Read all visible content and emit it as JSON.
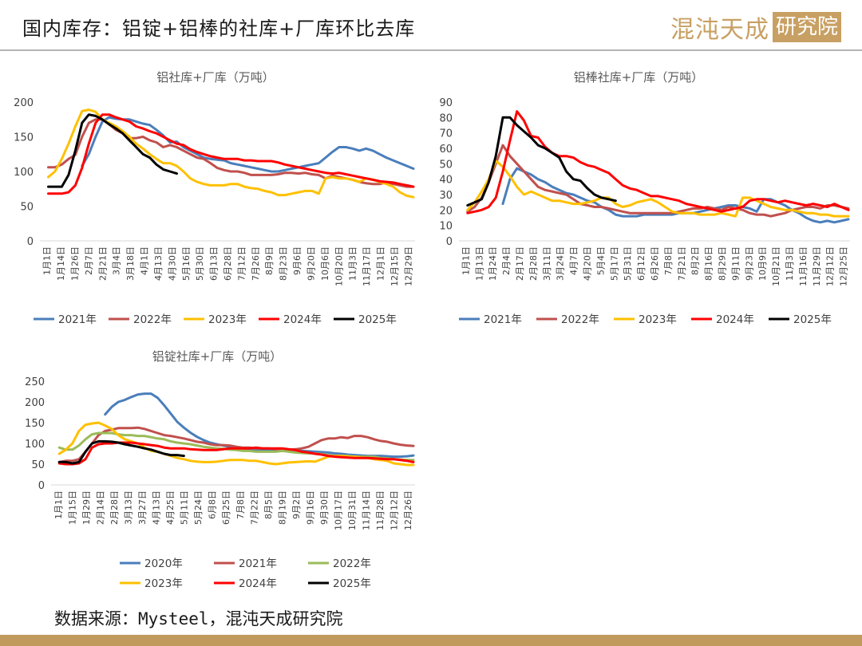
{
  "header": {
    "title": "国内库存：铝锭+铝棒的社库+厂库环比去库",
    "brand_main": "混沌天成",
    "brand_box": "研究院"
  },
  "source": "数据来源：Mysteel，混沌天成研究院",
  "colors": {
    "2020年": "#4a7ebb",
    "2021年": "#4a7ebb",
    "2022年": "#c0504d",
    "2023年": "#ffc000",
    "2024年": "#ff0000",
    "2025年": "#000000",
    "2021年_c3": "#c0504d",
    "2022年_c3": "#9bbb59"
  },
  "chart_data": [
    {
      "type": "line",
      "title": "铝社库+厂库（万吨）",
      "ylim": [
        0,
        200
      ],
      "yticks": [
        0,
        50,
        100,
        150,
        200
      ],
      "x_ticks": [
        "1月1日",
        "1月14日",
        "1月26日",
        "2月7日",
        "2月21日",
        "3月4日",
        "3月18日",
        "4月1日",
        "4月13日",
        "4月30日",
        "5月16日",
        "5月30日",
        "6月13日",
        "6月28日",
        "7月12日",
        "7月26日",
        "8月9日",
        "8月23日",
        "9月6日",
        "9月20日",
        "10月6日",
        "10月20日",
        "11月3日",
        "11月17日",
        "12月1日",
        "12月15日",
        "12月29日"
      ],
      "legend": [
        "2021年",
        "2022年",
        "2023年",
        "2024年",
        "2025年"
      ],
      "series": [
        {
          "name": "2021年",
          "color": "#4a7ebb",
          "values": [
            null,
            null,
            null,
            null,
            null,
            null,
            108,
            125,
            150,
            172,
            178,
            176,
            175,
            175,
            172,
            169,
            167,
            160,
            152,
            142,
            143,
            135,
            130,
            125,
            120,
            118,
            117,
            116,
            112,
            110,
            108,
            106,
            104,
            102,
            100,
            100,
            102,
            104,
            106,
            108,
            110,
            112,
            120,
            128,
            135,
            135,
            133,
            130,
            133,
            130,
            125,
            120,
            116,
            112,
            108,
            104
          ]
        },
        {
          "name": "2022年",
          "color": "#c0504d",
          "values": [
            null,
            106,
            106,
            110,
            118,
            124,
            150,
            170,
            175,
            175,
            168,
            160,
            155,
            148,
            148,
            150,
            145,
            142,
            135,
            138,
            135,
            130,
            125,
            120,
            118,
            112,
            105,
            102,
            100,
            100,
            98,
            95,
            95,
            95,
            95,
            96,
            98,
            98,
            97,
            98,
            96,
            95,
            90,
            94,
            92,
            90,
            88,
            85,
            83,
            82,
            82,
            84,
            82,
            80,
            78,
            78
          ]
        },
        {
          "name": "2023年",
          "color": "#ffc000",
          "values": [
            null,
            92,
            100,
            118,
            140,
            165,
            187,
            189,
            186,
            175,
            170,
            165,
            158,
            150,
            140,
            133,
            125,
            118,
            112,
            112,
            108,
            100,
            90,
            85,
            82,
            80,
            80,
            80,
            82,
            82,
            78,
            76,
            75,
            72,
            70,
            66,
            66,
            68,
            70,
            72,
            72,
            68,
            90,
            92,
            90,
            90,
            88,
            85,
            90,
            88,
            85,
            82,
            78,
            70,
            65,
            63
          ]
        },
        {
          "name": "2024年",
          "color": "#ff0000",
          "values": [
            null,
            68,
            68,
            68,
            70,
            80,
            105,
            140,
            170,
            182,
            182,
            178,
            175,
            172,
            165,
            162,
            158,
            155,
            150,
            145,
            140,
            138,
            132,
            128,
            125,
            122,
            120,
            118,
            118,
            118,
            116,
            116,
            115,
            115,
            115,
            113,
            110,
            108,
            106,
            104,
            102,
            100,
            98,
            97,
            98,
            96,
            94,
            92,
            90,
            88,
            86,
            85,
            84,
            82,
            80,
            78
          ]
        },
        {
          "name": "2025年",
          "color": "#000000",
          "values": [
            null,
            78,
            78,
            78,
            95,
            130,
            170,
            182,
            180,
            175,
            168,
            162,
            155,
            145,
            135,
            125,
            120,
            110,
            103,
            100,
            97,
            null,
            null,
            null,
            null,
            null,
            null,
            null,
            null,
            null,
            null,
            null,
            null,
            null,
            null,
            null,
            null,
            null,
            null,
            null,
            null,
            null,
            null,
            null,
            null,
            null,
            null,
            null,
            null,
            null,
            null,
            null,
            null,
            null,
            null,
            null
          ]
        }
      ]
    },
    {
      "type": "line",
      "title": "铝棒社库+厂库（万吨）",
      "ylim": [
        0,
        90
      ],
      "yticks": [
        0,
        10,
        20,
        30,
        40,
        50,
        60,
        70,
        80,
        90
      ],
      "x_ticks": [
        "1月1日",
        "1月13日",
        "1月24日",
        "2月4日",
        "2月17日",
        "2月28日",
        "3月11日",
        "3月24日",
        "4月7日",
        "4月20日",
        "5月4日",
        "5月17日",
        "5月31日",
        "6月12日",
        "6月26日",
        "7月8日",
        "7月21日",
        "8月2日",
        "8月16日",
        "8月29日",
        "9月11日",
        "9月23日",
        "10月9日",
        "10月21日",
        "11月3日",
        "11月16日",
        "11月29日",
        "12月12日",
        "12月25日"
      ],
      "legend": [
        "2021年",
        "2022年",
        "2023年",
        "2024年",
        "2025年"
      ],
      "series": [
        {
          "name": "2021年",
          "color": "#4a7ebb",
          "values": [
            null,
            null,
            null,
            null,
            null,
            null,
            24,
            40,
            47,
            45,
            43,
            40,
            38,
            35,
            33,
            31,
            30,
            28,
            26,
            25,
            22,
            20,
            17,
            16,
            16,
            16,
            17,
            17,
            17,
            17,
            17,
            18,
            18,
            18,
            19,
            20,
            21,
            22,
            23,
            23,
            22,
            21,
            19,
            27,
            27,
            25,
            23,
            20,
            18,
            15,
            13,
            12,
            13,
            12,
            13,
            14
          ]
        },
        {
          "name": "2022年",
          "color": "#c0504d",
          "values": [
            null,
            19,
            22,
            28,
            38,
            50,
            62,
            55,
            50,
            45,
            40,
            35,
            33,
            32,
            31,
            30,
            27,
            24,
            23,
            22,
            22,
            21,
            20,
            19,
            18,
            18,
            18,
            18,
            18,
            18,
            18,
            19,
            20,
            21,
            21,
            22,
            21,
            20,
            22,
            21,
            20,
            18,
            17,
            17,
            16,
            17,
            18,
            20,
            21,
            22,
            22,
            21,
            23,
            23,
            22,
            21
          ]
        },
        {
          "name": "2023年",
          "color": "#ffc000",
          "values": [
            null,
            20,
            25,
            32,
            40,
            52,
            48,
            42,
            35,
            30,
            32,
            30,
            28,
            26,
            26,
            25,
            24,
            24,
            25,
            26,
            28,
            28,
            24,
            22,
            23,
            25,
            26,
            27,
            25,
            22,
            19,
            18,
            18,
            18,
            17,
            17,
            17,
            18,
            17,
            16,
            28,
            28,
            26,
            24,
            22,
            21,
            20,
            20,
            19,
            18,
            18,
            17,
            17,
            16,
            16,
            16
          ]
        },
        {
          "name": "2024年",
          "color": "#ff0000",
          "values": [
            null,
            18,
            19,
            20,
            22,
            28,
            45,
            65,
            84,
            78,
            68,
            67,
            61,
            57,
            55,
            55,
            54,
            51,
            49,
            48,
            46,
            44,
            40,
            36,
            34,
            33,
            31,
            29,
            29,
            28,
            27,
            26,
            24,
            23,
            22,
            21,
            20,
            19,
            20,
            21,
            22,
            26,
            27,
            27,
            26,
            25,
            26,
            25,
            24,
            23,
            24,
            23,
            22,
            24,
            22,
            20
          ]
        },
        {
          "name": "2025年",
          "color": "#000000",
          "values": [
            null,
            23,
            25,
            27,
            38,
            55,
            80,
            80,
            75,
            71,
            67,
            62,
            60,
            57,
            54,
            45,
            40,
            39,
            34,
            30,
            28,
            27,
            26,
            null,
            null,
            null,
            null,
            null,
            null,
            null,
            null,
            null,
            null,
            null,
            null,
            null,
            null,
            null,
            null,
            null,
            null,
            null,
            null,
            null,
            null,
            null,
            null,
            null,
            null,
            null,
            null,
            null,
            null,
            null,
            null,
            null
          ]
        }
      ]
    },
    {
      "type": "line",
      "title": "铝锭社库+厂库（万吨）",
      "ylim": [
        0,
        250
      ],
      "yticks": [
        0,
        50,
        100,
        150,
        200,
        250
      ],
      "x_ticks": [
        "1月1日",
        "1月15日",
        "1月29日",
        "2月14日",
        "2月28日",
        "3月13日",
        "3月27日",
        "4月13日",
        "4月25日",
        "5月11日",
        "5月24日",
        "6月8日",
        "6月25日",
        "7月8日",
        "7月22日",
        "8月5日",
        "8月19日",
        "9月2日",
        "9月16日",
        "9月30日",
        "10月17日",
        "10月31日",
        "11月14日",
        "11月28日",
        "12月12日",
        "12月26日"
      ],
      "legend": [
        "2020年",
        "2021年",
        "2022年",
        "2023年",
        "2024年",
        "2025年"
      ],
      "series": [
        {
          "name": "2020年",
          "color": "#4a7ebb",
          "values": [
            null,
            null,
            null,
            null,
            null,
            null,
            null,
            null,
            170,
            188,
            200,
            205,
            212,
            218,
            220,
            220,
            210,
            192,
            172,
            152,
            138,
            126,
            116,
            108,
            102,
            98,
            95,
            92,
            90,
            88,
            86,
            84,
            84,
            84,
            83,
            82,
            82,
            82,
            82,
            81,
            80,
            79,
            78,
            76,
            75,
            73,
            72,
            71,
            70,
            70,
            70,
            69,
            68,
            68,
            69,
            71
          ]
        },
        {
          "name": "2021年",
          "color": "#c0504d",
          "values": [
            null,
            55,
            58,
            58,
            62,
            80,
            100,
            120,
            130,
            133,
            137,
            137,
            137,
            138,
            135,
            130,
            125,
            120,
            118,
            115,
            112,
            108,
            104,
            102,
            98,
            96,
            96,
            95,
            92,
            90,
            90,
            88,
            88,
            88,
            86,
            85,
            85,
            86,
            88,
            92,
            100,
            108,
            112,
            112,
            115,
            113,
            118,
            118,
            115,
            110,
            106,
            104,
            100,
            97,
            95,
            94
          ]
        },
        {
          "name": "2022年",
          "color": "#9bbb59",
          "values": [
            null,
            90,
            85,
            85,
            95,
            110,
            122,
            125,
            125,
            125,
            122,
            120,
            120,
            118,
            118,
            115,
            112,
            110,
            105,
            102,
            100,
            98,
            95,
            92,
            90,
            88,
            87,
            85,
            84,
            82,
            82,
            80,
            80,
            80,
            80,
            82,
            80,
            78,
            77,
            76,
            76,
            74,
            72,
            70,
            70,
            70,
            68,
            68,
            68,
            68,
            65,
            64,
            62,
            61,
            60,
            60
          ]
        },
        {
          "name": "2023年",
          "color": "#ffc000",
          "values": [
            null,
            75,
            85,
            100,
            130,
            145,
            148,
            150,
            143,
            135,
            120,
            110,
            105,
            100,
            90,
            82,
            80,
            75,
            70,
            65,
            62,
            58,
            56,
            55,
            55,
            56,
            58,
            60,
            60,
            60,
            58,
            58,
            55,
            52,
            50,
            52,
            54,
            55,
            56,
            57,
            56,
            62,
            68,
            70,
            70,
            68,
            68,
            66,
            65,
            62,
            60,
            58,
            52,
            50,
            48,
            48
          ]
        },
        {
          "name": "2024年",
          "color": "#ff0000",
          "values": [
            null,
            52,
            50,
            50,
            52,
            62,
            90,
            98,
            100,
            100,
            102,
            102,
            102,
            100,
            98,
            96,
            94,
            90,
            88,
            88,
            88,
            86,
            85,
            84,
            84,
            84,
            86,
            88,
            88,
            88,
            88,
            90,
            88,
            88,
            88,
            88,
            86,
            84,
            80,
            78,
            75,
            73,
            70,
            68,
            67,
            66,
            65,
            65,
            65,
            64,
            63,
            62,
            62,
            60,
            58,
            55
          ]
        },
        {
          "name": "2025年",
          "color": "#000000",
          "values": [
            null,
            55,
            55,
            52,
            55,
            80,
            100,
            105,
            105,
            104,
            102,
            98,
            95,
            92,
            88,
            85,
            80,
            75,
            72,
            72,
            70,
            null,
            null,
            null,
            null,
            null,
            null,
            null,
            null,
            null,
            null,
            null,
            null,
            null,
            null,
            null,
            null,
            null,
            null,
            null,
            null,
            null,
            null,
            null,
            null,
            null,
            null,
            null,
            null,
            null,
            null,
            null,
            null,
            null,
            null,
            null
          ]
        }
      ]
    }
  ]
}
